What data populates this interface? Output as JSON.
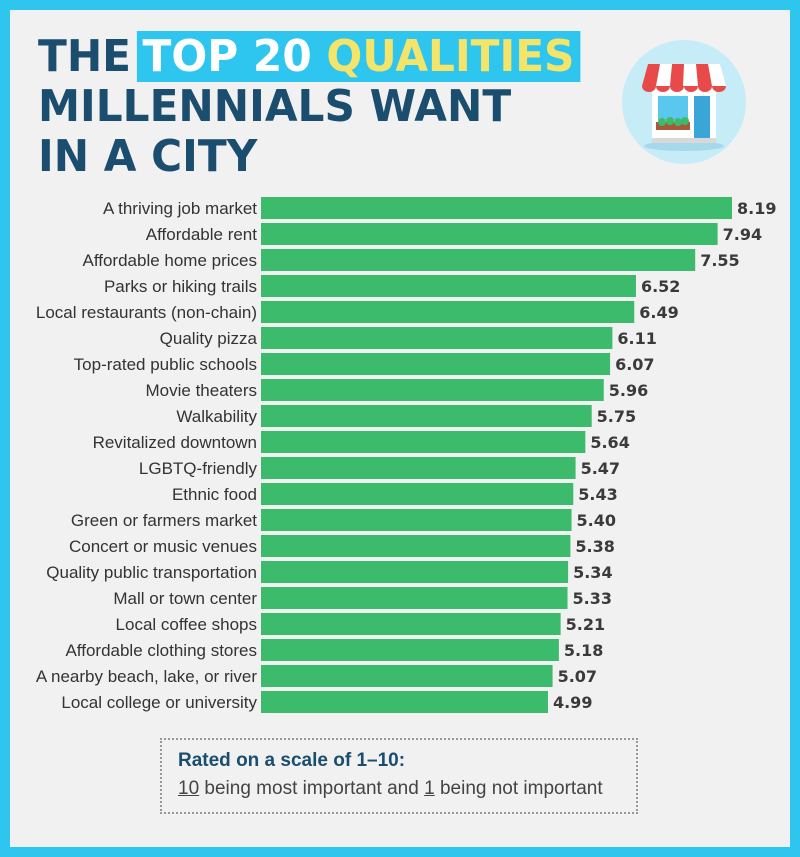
{
  "title": {
    "line1_prefix": "THE",
    "line1_highlight_white": "TOP 20",
    "line1_highlight_yellow": "QUALITIES",
    "line2": "MILLENNIALS WANT",
    "line3": "IN A CITY"
  },
  "icon": "storefront-icon",
  "colors": {
    "background": "#2ec6ee",
    "panel": "#f1f1f1",
    "bar": "#3dbb6c",
    "title": "#1a4d6e",
    "highlight_yellow": "#f5e46a"
  },
  "chart_data": {
    "type": "bar",
    "orientation": "horizontal",
    "categories": [
      "A thriving job market",
      "Affordable rent",
      "Affordable home prices",
      "Parks or hiking trails",
      "Local restaurants (non-chain)",
      "Quality pizza",
      "Top-rated public schools",
      "Movie theaters",
      "Walkability",
      "Revitalized downtown",
      "LGBTQ-friendly",
      "Ethnic food",
      "Green or farmers market",
      "Concert or music venues",
      "Quality public transportation",
      "Mall or town center",
      "Local coffee shops",
      "Affordable clothing stores",
      "A nearby beach, lake, or river",
      "Local college or university"
    ],
    "values": [
      8.19,
      7.94,
      7.55,
      6.52,
      6.49,
      6.11,
      6.07,
      5.96,
      5.75,
      5.64,
      5.47,
      5.43,
      5.4,
      5.38,
      5.34,
      5.33,
      5.21,
      5.18,
      5.07,
      4.99
    ],
    "value_labels": [
      "8.19",
      "7.94",
      "7.55",
      "6.52",
      "6.49",
      "6.11",
      "6.07",
      "5.96",
      "5.75",
      "5.64",
      "5.47",
      "5.43",
      "5.40",
      "5.38",
      "5.34",
      "5.33",
      "5.21",
      "5.18",
      "5.07",
      "4.99"
    ],
    "xlim": [
      0,
      10
    ],
    "grid": false,
    "legend": "none"
  },
  "note": {
    "line1": "Rated on a scale of 1–10:",
    "line2_num1": "10",
    "line2_mid": " being most important and ",
    "line2_num2": "1",
    "line2_end": " being not important"
  }
}
